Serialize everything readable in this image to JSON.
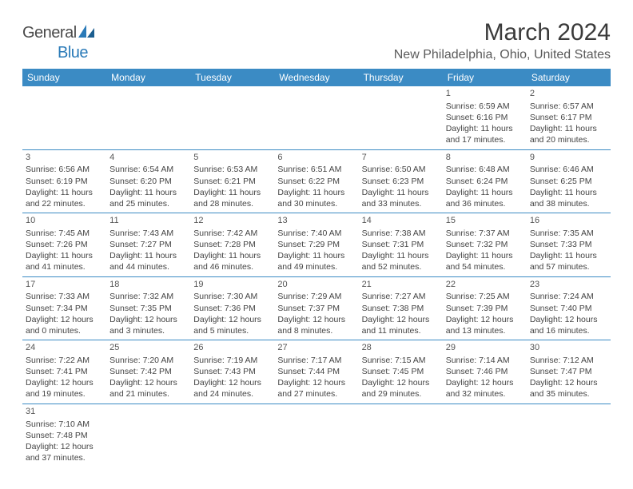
{
  "brand": {
    "name1": "General",
    "name2": "Blue"
  },
  "title": "March 2024",
  "location": "New Philadelphia, Ohio, United States",
  "colors": {
    "header_bg": "#3b8bc4",
    "header_text": "#ffffff",
    "border": "#3b8bc4",
    "text": "#444444",
    "title_color": "#3a3a3a",
    "location_color": "#5a5a5a",
    "logo_gray": "#4a4a4a",
    "logo_blue": "#2a7ab8"
  },
  "day_names": [
    "Sunday",
    "Monday",
    "Tuesday",
    "Wednesday",
    "Thursday",
    "Friday",
    "Saturday"
  ],
  "weeks": [
    [
      null,
      null,
      null,
      null,
      null,
      {
        "n": "1",
        "sr": "6:59 AM",
        "ss": "6:16 PM",
        "dl": "11 hours and 17 minutes."
      },
      {
        "n": "2",
        "sr": "6:57 AM",
        "ss": "6:17 PM",
        "dl": "11 hours and 20 minutes."
      }
    ],
    [
      {
        "n": "3",
        "sr": "6:56 AM",
        "ss": "6:19 PM",
        "dl": "11 hours and 22 minutes."
      },
      {
        "n": "4",
        "sr": "6:54 AM",
        "ss": "6:20 PM",
        "dl": "11 hours and 25 minutes."
      },
      {
        "n": "5",
        "sr": "6:53 AM",
        "ss": "6:21 PM",
        "dl": "11 hours and 28 minutes."
      },
      {
        "n": "6",
        "sr": "6:51 AM",
        "ss": "6:22 PM",
        "dl": "11 hours and 30 minutes."
      },
      {
        "n": "7",
        "sr": "6:50 AM",
        "ss": "6:23 PM",
        "dl": "11 hours and 33 minutes."
      },
      {
        "n": "8",
        "sr": "6:48 AM",
        "ss": "6:24 PM",
        "dl": "11 hours and 36 minutes."
      },
      {
        "n": "9",
        "sr": "6:46 AM",
        "ss": "6:25 PM",
        "dl": "11 hours and 38 minutes."
      }
    ],
    [
      {
        "n": "10",
        "sr": "7:45 AM",
        "ss": "7:26 PM",
        "dl": "11 hours and 41 minutes."
      },
      {
        "n": "11",
        "sr": "7:43 AM",
        "ss": "7:27 PM",
        "dl": "11 hours and 44 minutes."
      },
      {
        "n": "12",
        "sr": "7:42 AM",
        "ss": "7:28 PM",
        "dl": "11 hours and 46 minutes."
      },
      {
        "n": "13",
        "sr": "7:40 AM",
        "ss": "7:29 PM",
        "dl": "11 hours and 49 minutes."
      },
      {
        "n": "14",
        "sr": "7:38 AM",
        "ss": "7:31 PM",
        "dl": "11 hours and 52 minutes."
      },
      {
        "n": "15",
        "sr": "7:37 AM",
        "ss": "7:32 PM",
        "dl": "11 hours and 54 minutes."
      },
      {
        "n": "16",
        "sr": "7:35 AM",
        "ss": "7:33 PM",
        "dl": "11 hours and 57 minutes."
      }
    ],
    [
      {
        "n": "17",
        "sr": "7:33 AM",
        "ss": "7:34 PM",
        "dl": "12 hours and 0 minutes."
      },
      {
        "n": "18",
        "sr": "7:32 AM",
        "ss": "7:35 PM",
        "dl": "12 hours and 3 minutes."
      },
      {
        "n": "19",
        "sr": "7:30 AM",
        "ss": "7:36 PM",
        "dl": "12 hours and 5 minutes."
      },
      {
        "n": "20",
        "sr": "7:29 AM",
        "ss": "7:37 PM",
        "dl": "12 hours and 8 minutes."
      },
      {
        "n": "21",
        "sr": "7:27 AM",
        "ss": "7:38 PM",
        "dl": "12 hours and 11 minutes."
      },
      {
        "n": "22",
        "sr": "7:25 AM",
        "ss": "7:39 PM",
        "dl": "12 hours and 13 minutes."
      },
      {
        "n": "23",
        "sr": "7:24 AM",
        "ss": "7:40 PM",
        "dl": "12 hours and 16 minutes."
      }
    ],
    [
      {
        "n": "24",
        "sr": "7:22 AM",
        "ss": "7:41 PM",
        "dl": "12 hours and 19 minutes."
      },
      {
        "n": "25",
        "sr": "7:20 AM",
        "ss": "7:42 PM",
        "dl": "12 hours and 21 minutes."
      },
      {
        "n": "26",
        "sr": "7:19 AM",
        "ss": "7:43 PM",
        "dl": "12 hours and 24 minutes."
      },
      {
        "n": "27",
        "sr": "7:17 AM",
        "ss": "7:44 PM",
        "dl": "12 hours and 27 minutes."
      },
      {
        "n": "28",
        "sr": "7:15 AM",
        "ss": "7:45 PM",
        "dl": "12 hours and 29 minutes."
      },
      {
        "n": "29",
        "sr": "7:14 AM",
        "ss": "7:46 PM",
        "dl": "12 hours and 32 minutes."
      },
      {
        "n": "30",
        "sr": "7:12 AM",
        "ss": "7:47 PM",
        "dl": "12 hours and 35 minutes."
      }
    ],
    [
      {
        "n": "31",
        "sr": "7:10 AM",
        "ss": "7:48 PM",
        "dl": "12 hours and 37 minutes."
      },
      null,
      null,
      null,
      null,
      null,
      null
    ]
  ],
  "labels": {
    "sunrise": "Sunrise: ",
    "sunset": "Sunset: ",
    "daylight": "Daylight: "
  }
}
